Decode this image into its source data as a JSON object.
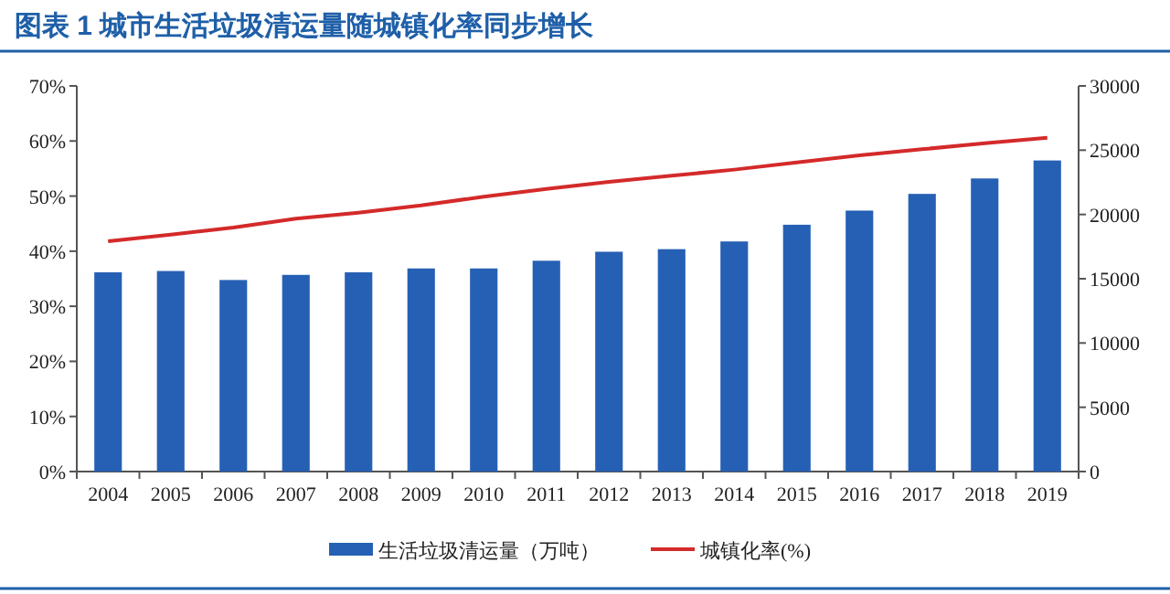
{
  "chart_data": {
    "type": "bar",
    "title": "图表 1   城市生活垃圾清运量随城镇化率同步增长",
    "categories": [
      "2004",
      "2005",
      "2006",
      "2007",
      "2008",
      "2009",
      "2010",
      "2011",
      "2012",
      "2013",
      "2014",
      "2015",
      "2016",
      "2017",
      "2018",
      "2019"
    ],
    "series": [
      {
        "name": "生活垃圾清运量（万吨）",
        "axis": "y2",
        "color": "#2660b4",
        "values": [
          15500,
          15600,
          14900,
          15300,
          15500,
          15800,
          15800,
          16400,
          17100,
          17300,
          17900,
          19200,
          20300,
          21600,
          22800,
          24200
        ]
      },
      {
        "name": "城镇化率(%)",
        "type": "line",
        "axis": "y",
        "color": "#d42a2a",
        "values": [
          41.8,
          43.0,
          44.3,
          45.9,
          47.0,
          48.3,
          49.9,
          51.3,
          52.6,
          53.7,
          54.8,
          56.1,
          57.4,
          58.5,
          59.6,
          60.6
        ]
      }
    ],
    "ylim": [
      0,
      70
    ],
    "yticks": [
      {
        "value": 0,
        "label": "0%"
      },
      {
        "value": 10,
        "label": "10%"
      },
      {
        "value": 20,
        "label": "20%"
      },
      {
        "value": 30,
        "label": "30%"
      },
      {
        "value": 40,
        "label": "40%"
      },
      {
        "value": 50,
        "label": "50%"
      },
      {
        "value": 60,
        "label": "60%"
      },
      {
        "value": 70,
        "label": "70%"
      }
    ],
    "y2lim": [
      0,
      30000
    ],
    "y2ticks": [
      0,
      5000,
      10000,
      15000,
      20000,
      25000,
      30000
    ],
    "legend": "bottom"
  }
}
